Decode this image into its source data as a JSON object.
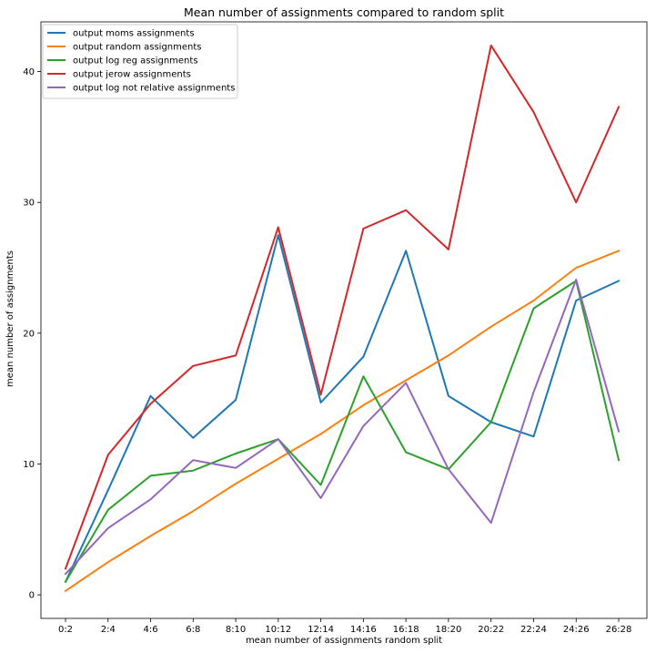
{
  "chart_data": {
    "type": "line",
    "title": "Mean number of assignments compared to random split",
    "xlabel": "mean number of assignments random split",
    "ylabel": "mean number of assignments",
    "categories": [
      "0:2",
      "2:4",
      "4:6",
      "6:8",
      "8:10",
      "10:12",
      "12:14",
      "14:16",
      "16:18",
      "18:20",
      "20:22",
      "22:24",
      "24:26",
      "26:28"
    ],
    "yticks": [
      0,
      10,
      20,
      30,
      40
    ],
    "ylim": [
      -1.8,
      43.8
    ],
    "grid": false,
    "legend_position": "top-left",
    "series": [
      {
        "name": "output moms assignments",
        "color": "#1f77b4",
        "values": [
          1.0,
          8.0,
          15.2,
          12.0,
          14.9,
          27.5,
          14.7,
          18.2,
          26.3,
          15.2,
          13.2,
          12.1,
          22.5,
          24.0
        ]
      },
      {
        "name": "output random assignments",
        "color": "#ff7f0e",
        "values": [
          0.3,
          2.5,
          4.5,
          6.4,
          8.5,
          10.4,
          12.3,
          14.5,
          16.4,
          18.3,
          20.5,
          22.5,
          25.0,
          26.3
        ]
      },
      {
        "name": "output log reg assignments",
        "color": "#2ca02c",
        "values": [
          1.0,
          6.5,
          9.1,
          9.5,
          10.8,
          11.9,
          8.4,
          16.7,
          10.9,
          9.6,
          13.2,
          21.9,
          24.0,
          10.3
        ]
      },
      {
        "name": "output jerow assignments",
        "color": "#d62728",
        "values": [
          2.0,
          10.7,
          14.6,
          17.5,
          18.3,
          28.1,
          15.3,
          28.0,
          29.4,
          26.4,
          42.0,
          36.9,
          30.0,
          37.3
        ]
      },
      {
        "name": "output log not relative assignments",
        "color": "#9467bd",
        "values": [
          1.6,
          5.1,
          7.3,
          10.3,
          9.7,
          11.9,
          7.4,
          12.9,
          16.2,
          9.6,
          5.5,
          15.5,
          24.1,
          12.5
        ]
      }
    ]
  }
}
